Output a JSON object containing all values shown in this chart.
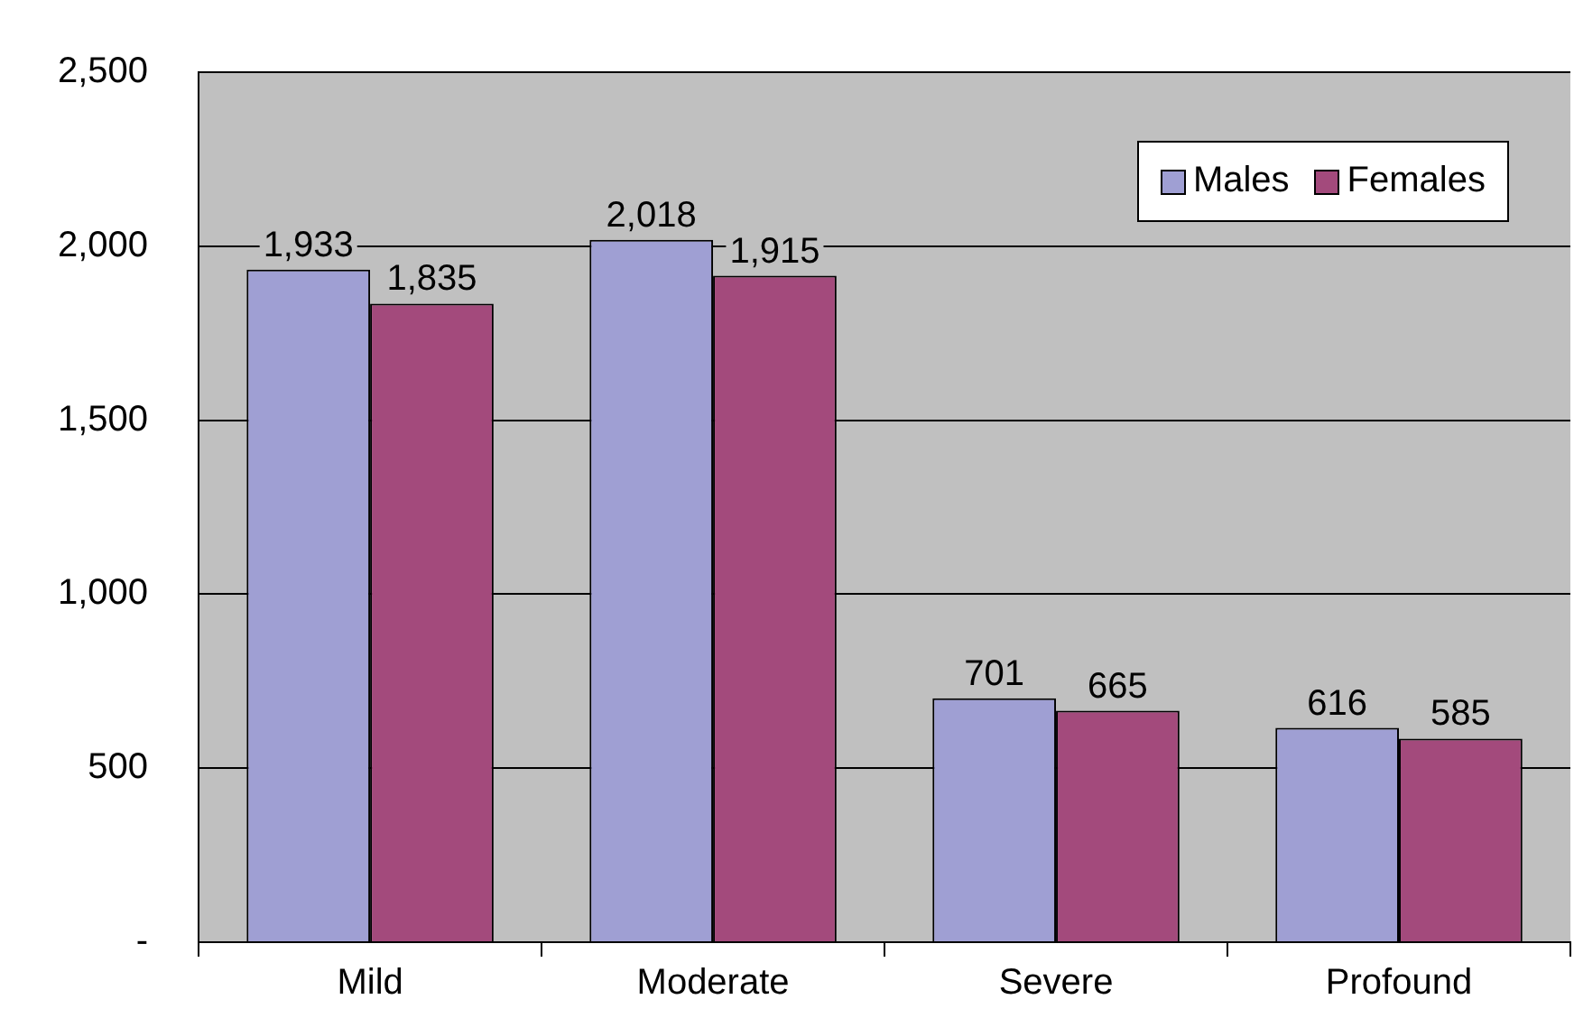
{
  "chart_data": {
    "type": "bar",
    "categories": [
      "Mild",
      "Moderate",
      "Severe",
      "Profound"
    ],
    "series": [
      {
        "name": "Males",
        "color": "#9f9fd3",
        "values": [
          1933,
          2018,
          701,
          616
        ],
        "value_labels": [
          "1,933",
          "2,018",
          "701",
          "616"
        ]
      },
      {
        "name": "Females",
        "color": "#a34a7c",
        "values": [
          1835,
          1915,
          665,
          585
        ],
        "value_labels": [
          "1,835",
          "1,915",
          "665",
          "585"
        ]
      }
    ],
    "ylim": [
      0,
      2500
    ],
    "yticks": [
      {
        "value": 0,
        "label": "-"
      },
      500,
      {
        "value": 1000,
        "label": "1,000"
      },
      {
        "value": 1500,
        "label": "1,500"
      },
      {
        "value": 2000,
        "label": "2,000"
      },
      {
        "value": 2500,
        "label": "2,500"
      }
    ],
    "grid": "y",
    "legend": "top right"
  }
}
